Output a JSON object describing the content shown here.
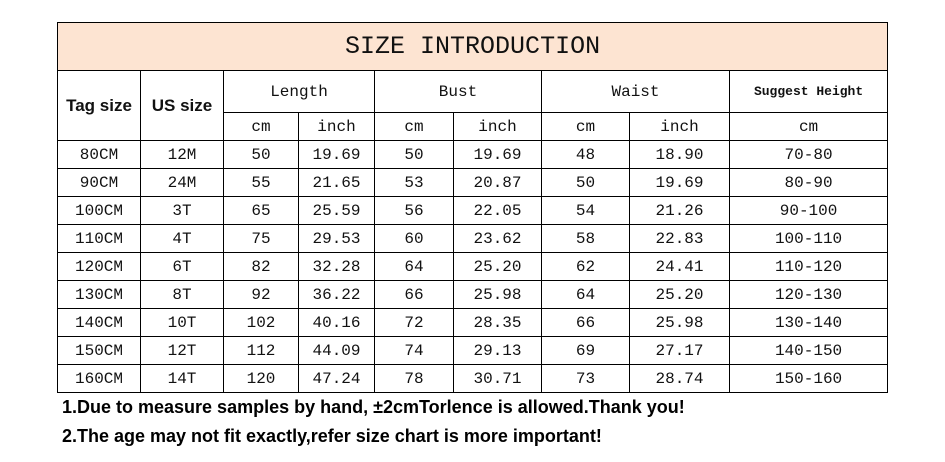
{
  "title": "SIZE INTRODUCTION",
  "header": {
    "tag_size": "Tag size",
    "us_size": "US size",
    "groups": [
      "Length",
      "Bust",
      "Waist",
      "Suggest Height"
    ],
    "units": [
      "cm",
      "inch",
      "cm",
      "inch",
      "cm",
      "inch",
      "cm"
    ]
  },
  "rows": [
    [
      "80CM",
      "12M",
      "50",
      "19.69",
      "50",
      "19.69",
      "48",
      "18.90",
      "70-80"
    ],
    [
      "90CM",
      "24M",
      "55",
      "21.65",
      "53",
      "20.87",
      "50",
      "19.69",
      "80-90"
    ],
    [
      "100CM",
      "3T",
      "65",
      "25.59",
      "56",
      "22.05",
      "54",
      "21.26",
      "90-100"
    ],
    [
      "110CM",
      "4T",
      "75",
      "29.53",
      "60",
      "23.62",
      "58",
      "22.83",
      "100-110"
    ],
    [
      "120CM",
      "6T",
      "82",
      "32.28",
      "64",
      "25.20",
      "62",
      "24.41",
      "110-120"
    ],
    [
      "130CM",
      "8T",
      "92",
      "36.22",
      "66",
      "25.98",
      "64",
      "25.20",
      "120-130"
    ],
    [
      "140CM",
      "10T",
      "102",
      "40.16",
      "72",
      "28.35",
      "66",
      "25.98",
      "130-140"
    ],
    [
      "150CM",
      "12T",
      "112",
      "44.09",
      "74",
      "29.13",
      "69",
      "27.17",
      "140-150"
    ],
    [
      "160CM",
      "14T",
      "120",
      "47.24",
      "78",
      "30.71",
      "73",
      "28.74",
      "150-160"
    ]
  ],
  "notes": [
    "1.Due to measure samples by hand, ±2cmTorlence is allowed.Thank you!",
    "2.The age may not fit exactly,refer size chart is more important!"
  ]
}
